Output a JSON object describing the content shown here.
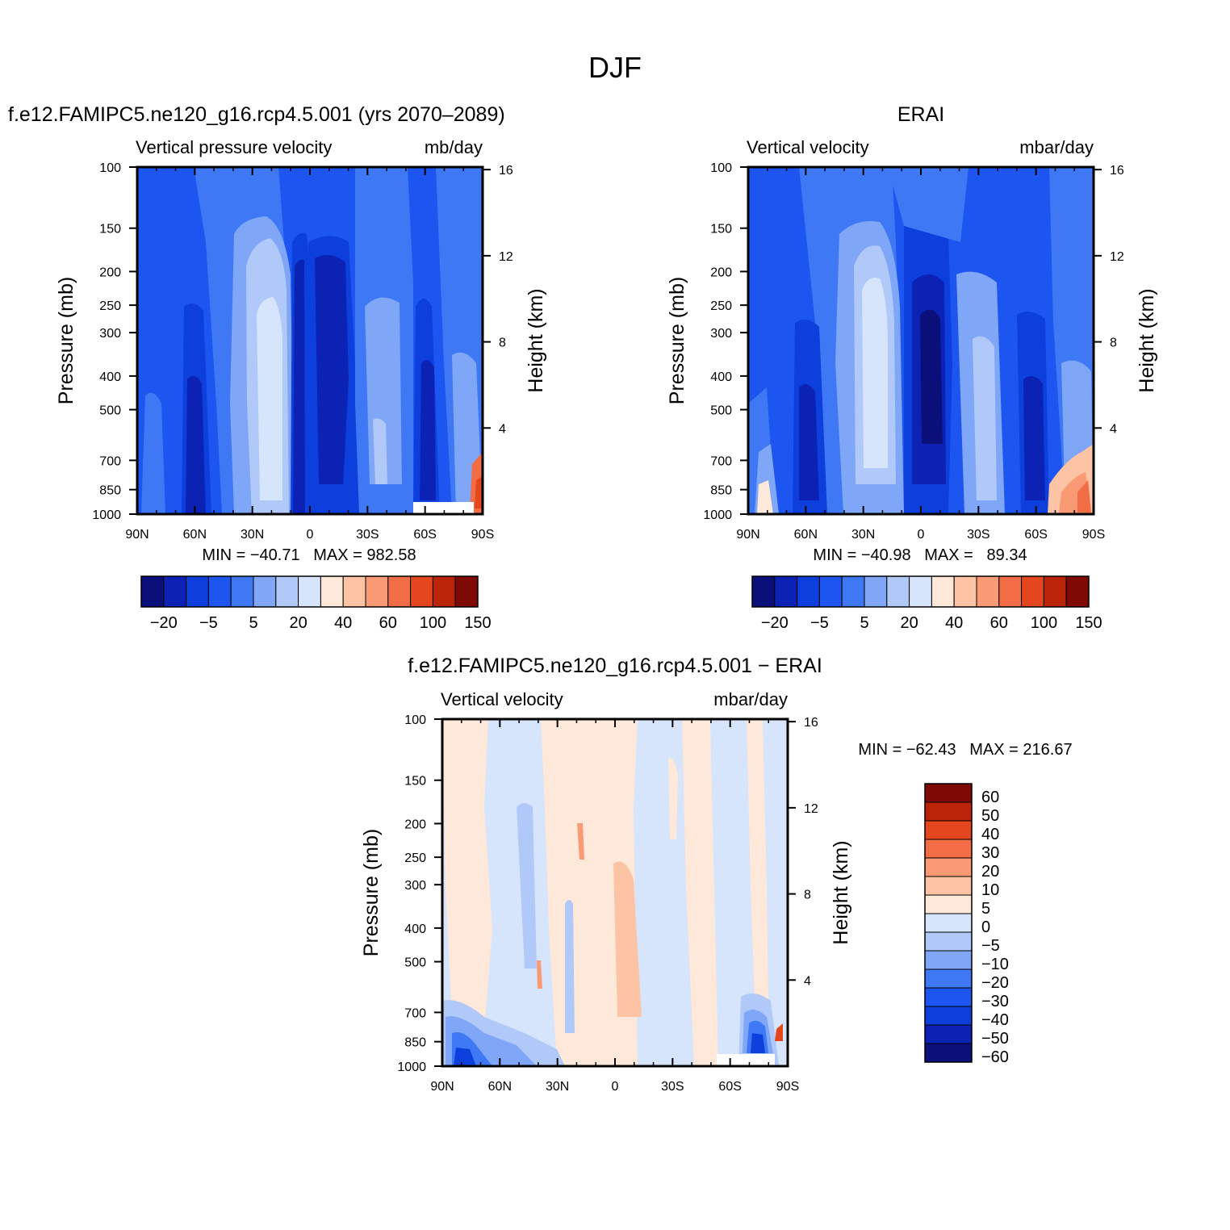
{
  "page_title": "DJF",
  "chart_data": [
    {
      "type": "heatmap",
      "title": "f.e12.FAMIPC5.ne120_g16.rcp4.5.001 (yrs 2070–2089)",
      "subtitle_left": "Vertical pressure velocity",
      "subtitle_right": "mb/day",
      "xlabel": "",
      "ylabel": "Pressure (mb)",
      "ylabel_right": "Height (km)",
      "x_ticks": [
        "90N",
        "60N",
        "30N",
        "0",
        "30S",
        "60S",
        "90S"
      ],
      "y_ticks": [
        "100",
        "150",
        "200",
        "250",
        "300",
        "400",
        "500",
        "700",
        "850",
        "1000"
      ],
      "y_ticks_right": [
        "16",
        "12",
        "8",
        "4"
      ],
      "stats": "MIN = −40.71   MAX = 982.58",
      "min": -40.71,
      "max": 982.58,
      "colorbar_labels": [
        "−20",
        "−5",
        "5",
        "20",
        "40",
        "60",
        "100",
        "150"
      ],
      "colorbar_colors": [
        "#0a0f7a",
        "#0b22b5",
        "#0c3fdc",
        "#1d55f0",
        "#3f78f4",
        "#7fa6f7",
        "#b1c9f8",
        "#d6e5fb",
        "#fde8da",
        "#fcc3a4",
        "#f99a74",
        "#f26c45",
        "#e4461d",
        "#bb2408",
        "#7f0a05"
      ]
    },
    {
      "type": "heatmap",
      "title": "ERAI",
      "subtitle_left": "Vertical velocity",
      "subtitle_right": "mbar/day",
      "xlabel": "",
      "ylabel": "Pressure (mb)",
      "ylabel_right": "Height (km)",
      "x_ticks": [
        "90N",
        "60N",
        "30N",
        "0",
        "30S",
        "60S",
        "90S"
      ],
      "y_ticks": [
        "100",
        "150",
        "200",
        "250",
        "300",
        "400",
        "500",
        "700",
        "850",
        "1000"
      ],
      "y_ticks_right": [
        "16",
        "12",
        "8",
        "4"
      ],
      "stats": "MIN = −40.98   MAX =   89.34",
      "min": -40.98,
      "max": 89.34,
      "colorbar_labels": [
        "−20",
        "−5",
        "5",
        "20",
        "40",
        "60",
        "100",
        "150"
      ],
      "colorbar_colors": [
        "#0a0f7a",
        "#0b22b5",
        "#0c3fdc",
        "#1d55f0",
        "#3f78f4",
        "#7fa6f7",
        "#b1c9f8",
        "#d6e5fb",
        "#fde8da",
        "#fcc3a4",
        "#f99a74",
        "#f26c45",
        "#e4461d",
        "#bb2408",
        "#7f0a05"
      ]
    },
    {
      "type": "heatmap",
      "title": "f.e12.FAMIPC5.ne120_g16.rcp4.5.001 − ERAI",
      "subtitle_left": "Vertical velocity",
      "subtitle_right": "mbar/day",
      "xlabel": "",
      "ylabel": "Pressure (mb)",
      "ylabel_right": "Height (km)",
      "x_ticks": [
        "90N",
        "60N",
        "30N",
        "0",
        "30S",
        "60S",
        "90S"
      ],
      "y_ticks": [
        "100",
        "150",
        "200",
        "250",
        "300",
        "400",
        "500",
        "700",
        "850",
        "1000"
      ],
      "y_ticks_right": [
        "16",
        "12",
        "8",
        "4"
      ],
      "stats": "MIN = −62.43   MAX = 216.67",
      "min": -62.43,
      "max": 216.67,
      "colorbar_labels": [
        "60",
        "50",
        "40",
        "30",
        "20",
        "10",
        "5",
        "0",
        "−5",
        "−10",
        "−20",
        "−30",
        "−40",
        "−50",
        "−60"
      ],
      "colorbar_colors": [
        "#7f0a05",
        "#bb2408",
        "#e4461d",
        "#f26c45",
        "#f99a74",
        "#fcc3a4",
        "#fde8da",
        "#d6e5fb",
        "#b1c9f8",
        "#7fa6f7",
        "#3f78f4",
        "#1d55f0",
        "#0c3fdc",
        "#0b22b5",
        "#0a0f7a"
      ]
    }
  ]
}
